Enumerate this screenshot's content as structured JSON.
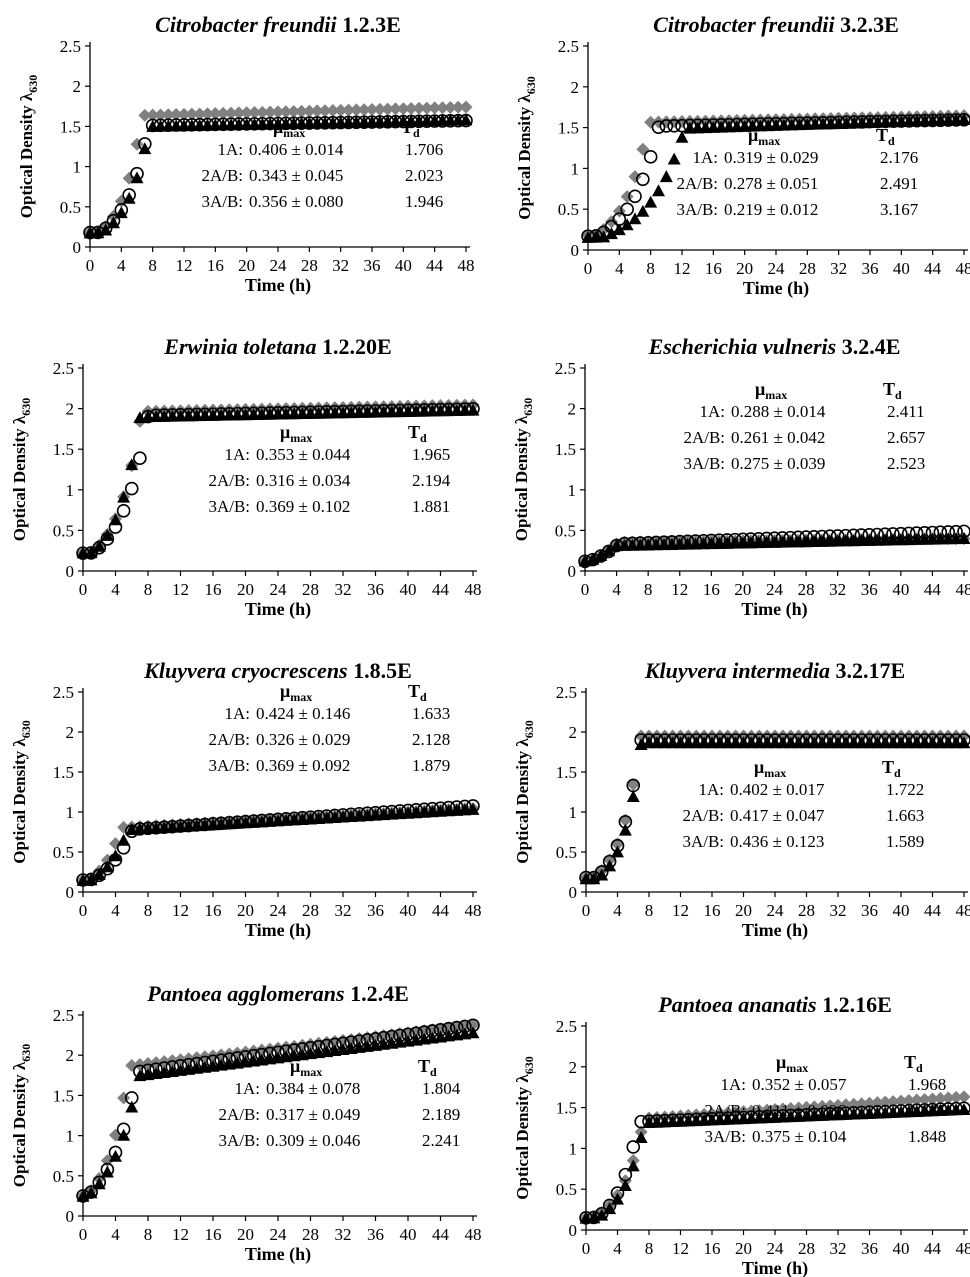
{
  "figure": {
    "xlabel": "Time (h)",
    "ylabel": "Optical Density λ",
    "ylabel_sub": "630",
    "mu_label": "μ",
    "mu_sub": "max",
    "td_label": "T",
    "td_sub": "d",
    "series_style": [
      {
        "key": "1A",
        "marker": "diamond",
        "color": "#808080"
      },
      {
        "key": "2A/B",
        "marker": "circle-open",
        "color": "#000000"
      },
      {
        "key": "3A/B",
        "marker": "triangle",
        "color": "#000000"
      }
    ]
  },
  "chart_data": [
    {
      "type": "scatter",
      "title_italic": "Citrobacter freundii",
      "title_rest": " 1.2.3E",
      "x_ticks": [
        "0",
        "4",
        "8",
        "12",
        "16",
        "20",
        "24",
        "28",
        "32",
        "36",
        "40",
        "44",
        "48"
      ],
      "y_ticks": [
        "0",
        "0.5",
        "1",
        "1.5",
        "2",
        "2.5"
      ],
      "xlim": [
        0,
        48
      ],
      "ylim": [
        0,
        2.5
      ],
      "series": [
        {
          "key": "1A",
          "lag": 1.2,
          "rate": 0.406,
          "y0": 0.18,
          "ymax": 1.62,
          "drift": 0.0025
        },
        {
          "key": "2A/B",
          "lag": 1.3,
          "rate": 0.343,
          "y0": 0.18,
          "ymax": 1.5,
          "drift": 0.0015
        },
        {
          "key": "3A/B",
          "lag": 1.5,
          "rate": 0.356,
          "y0": 0.17,
          "ymax": 1.48,
          "drift": 0.002
        }
      ],
      "stats": [
        {
          "label": "1A:",
          "mu": "0.406 ± 0.014",
          "td": "1.706"
        },
        {
          "label": "2A/B:",
          "mu": "0.343 ± 0.045",
          "td": "2.023"
        },
        {
          "label": "3A/B:",
          "mu": "0.356 ± 0.080",
          "td": "1.946"
        }
      ]
    },
    {
      "type": "scatter",
      "title_italic": "Citrobacter freundii",
      "title_rest": " 3.2.3E",
      "x_ticks": [
        "0",
        "4",
        "8",
        "12",
        "16",
        "20",
        "24",
        "28",
        "32",
        "36",
        "40",
        "44",
        "48"
      ],
      "y_ticks": [
        "0",
        "0.5",
        "1",
        "1.5",
        "2",
        "2.5"
      ],
      "xlim": [
        0,
        48
      ],
      "ylim": [
        0,
        2.5
      ],
      "series": [
        {
          "key": "1A",
          "lag": 1.0,
          "rate": 0.319,
          "y0": 0.18,
          "ymax": 1.55,
          "drift": 0.002
        },
        {
          "key": "2A/B",
          "lag": 1.2,
          "rate": 0.278,
          "y0": 0.17,
          "ymax": 1.5,
          "drift": 0.002
        },
        {
          "key": "3A/B",
          "lag": 2.0,
          "rate": 0.219,
          "y0": 0.15,
          "ymax": 1.45,
          "drift": 0.003
        }
      ],
      "stats": [
        {
          "label": "1A:",
          "mu": "0.319 ± 0.029",
          "td": "2.176"
        },
        {
          "label": "2A/B:",
          "mu": "0.278 ± 0.051",
          "td": "2.491"
        },
        {
          "label": "3A/B:",
          "mu": "0.219 ± 0.012",
          "td": "3.167"
        }
      ]
    },
    {
      "type": "scatter",
      "title_italic": "Erwinia toletana",
      "title_rest": " 1.2.20E",
      "x_ticks": [
        "0",
        "4",
        "8",
        "12",
        "16",
        "20",
        "24",
        "28",
        "32",
        "36",
        "40",
        "44",
        "48"
      ],
      "y_ticks": [
        "0",
        "0.5",
        "1",
        "1.5",
        "2",
        "2.5"
      ],
      "xlim": [
        0,
        48
      ],
      "ylim": [
        0,
        2.5
      ],
      "series": [
        {
          "key": "1A",
          "lag": 1.0,
          "rate": 0.353,
          "y0": 0.22,
          "ymax": 1.95,
          "drift": 0.002
        },
        {
          "key": "2A/B",
          "lag": 1.2,
          "rate": 0.316,
          "y0": 0.22,
          "ymax": 1.9,
          "drift": 0.002
        },
        {
          "key": "3A/B",
          "lag": 1.2,
          "rate": 0.369,
          "y0": 0.22,
          "ymax": 1.88,
          "drift": 0.002
        }
      ],
      "stats": [
        {
          "label": "1A:",
          "mu": "0.353 ± 0.044",
          "td": "1.965"
        },
        {
          "label": "2A/B:",
          "mu": "0.316 ± 0.034",
          "td": "2.194"
        },
        {
          "label": "3A/B:",
          "mu": "0.369 ± 0.102",
          "td": "1.881"
        }
      ]
    },
    {
      "type": "scatter",
      "title_italic": "Escherichia vulneris",
      "title_rest": " 3.2.4E",
      "x_ticks": [
        "0",
        "4",
        "8",
        "12",
        "16",
        "20",
        "24",
        "28",
        "32",
        "36",
        "40",
        "44",
        "48"
      ],
      "y_ticks": [
        "0",
        "0.5",
        "1",
        "1.5",
        "2",
        "2.5"
      ],
      "xlim": [
        0,
        48
      ],
      "ylim": [
        0,
        2.5
      ],
      "series": [
        {
          "key": "1A",
          "lag": 0.5,
          "rate": 0.288,
          "y0": 0.12,
          "ymax": 0.35,
          "drift": 0.001
        },
        {
          "key": "2A/B",
          "lag": 0.5,
          "rate": 0.261,
          "y0": 0.12,
          "ymax": 0.32,
          "drift": 0.0035
        },
        {
          "key": "3A/B",
          "lag": 0.5,
          "rate": 0.275,
          "y0": 0.12,
          "ymax": 0.3,
          "drift": 0.002
        }
      ],
      "stats": [
        {
          "label": "1A:",
          "mu": "0.288 ± 0.014",
          "td": "2.411"
        },
        {
          "label": "2A/B:",
          "mu": "0.261 ± 0.042",
          "td": "2.657"
        },
        {
          "label": "3A/B:",
          "mu": "0.275 ± 0.039",
          "td": "2.523"
        }
      ]
    },
    {
      "type": "scatter",
      "title_italic": "Kluyvera cryocrescens",
      "title_rest": " 1.8.5E",
      "x_ticks": [
        "0",
        "4",
        "8",
        "12",
        "16",
        "20",
        "24",
        "28",
        "32",
        "36",
        "40",
        "44",
        "48"
      ],
      "y_ticks": [
        "0",
        "0.5",
        "1",
        "1.5",
        "2",
        "2.5"
      ],
      "xlim": [
        0,
        48
      ],
      "ylim": [
        0,
        2.5
      ],
      "series": [
        {
          "key": "1A",
          "lag": 0.8,
          "rate": 0.424,
          "y0": 0.15,
          "ymax": 0.78,
          "drift": 0.0055
        },
        {
          "key": "2A/B",
          "lag": 1.2,
          "rate": 0.326,
          "y0": 0.15,
          "ymax": 0.74,
          "drift": 0.007
        },
        {
          "key": "3A/B",
          "lag": 1.0,
          "rate": 0.369,
          "y0": 0.14,
          "ymax": 0.74,
          "drift": 0.006
        }
      ],
      "stats": [
        {
          "label": "1A:",
          "mu": "0.424 ± 0.146",
          "td": "1.633"
        },
        {
          "label": "2A/B:",
          "mu": "0.326 ± 0.029",
          "td": "2.128"
        },
        {
          "label": "3A/B:",
          "mu": "0.369 ± 0.092",
          "td": "1.879"
        }
      ]
    },
    {
      "type": "scatter",
      "title_italic": "Kluyvera intermedia",
      "title_rest": " 3.2.17E",
      "x_ticks": [
        "0",
        "4",
        "8",
        "12",
        "16",
        "20",
        "24",
        "28",
        "32",
        "36",
        "40",
        "44",
        "48"
      ],
      "y_ticks": [
        "0",
        "0.5",
        "1",
        "1.5",
        "2",
        "2.5"
      ],
      "xlim": [
        0,
        48
      ],
      "ylim": [
        0,
        2.5
      ],
      "series": [
        {
          "key": "1A",
          "lag": 1.0,
          "rate": 0.402,
          "y0": 0.18,
          "ymax": 1.95,
          "drift": 0.0
        },
        {
          "key": "2A/B",
          "lag": 1.2,
          "rate": 0.417,
          "y0": 0.18,
          "ymax": 1.9,
          "drift": 0.0
        },
        {
          "key": "3A/B",
          "lag": 1.4,
          "rate": 0.436,
          "y0": 0.16,
          "ymax": 1.86,
          "drift": 0.0
        }
      ],
      "stats": [
        {
          "label": "1A:",
          "mu": "0.402 ± 0.017",
          "td": "1.722"
        },
        {
          "label": "2A/B:",
          "mu": "0.417 ± 0.047",
          "td": "1.663"
        },
        {
          "label": "3A/B:",
          "mu": "0.436 ± 0.123",
          "td": "1.589"
        }
      ]
    },
    {
      "type": "scatter",
      "title_italic": "Pantoea agglomerans",
      "title_rest": " 1.2.4E",
      "x_ticks": [
        "0",
        "4",
        "8",
        "12",
        "16",
        "20",
        "24",
        "28",
        "32",
        "36",
        "40",
        "44",
        "48"
      ],
      "y_ticks": [
        "0",
        "0.5",
        "1",
        "1.5",
        "2",
        "2.5"
      ],
      "xlim": [
        0,
        48
      ],
      "ylim": [
        0,
        2.5
      ],
      "series": [
        {
          "key": "1A",
          "lag": 0.5,
          "rate": 0.384,
          "y0": 0.25,
          "ymax": 1.8,
          "drift": 0.012
        },
        {
          "key": "2A/B",
          "lag": 0.6,
          "rate": 0.317,
          "y0": 0.25,
          "ymax": 1.7,
          "drift": 0.014
        },
        {
          "key": "3A/B",
          "lag": 0.6,
          "rate": 0.309,
          "y0": 0.24,
          "ymax": 1.65,
          "drift": 0.013
        }
      ],
      "stats": [
        {
          "label": "1A:",
          "mu": "0.384 ± 0.078",
          "td": "1.804"
        },
        {
          "label": "2A/B:",
          "mu": "0.317 ± 0.049",
          "td": "2.189"
        },
        {
          "label": "3A/B:",
          "mu": "0.309 ± 0.046",
          "td": "2.241"
        }
      ]
    },
    {
      "type": "scatter",
      "title_italic": "Pantoea ananatis",
      "title_rest": " 1.2.16E",
      "x_ticks": [
        "0",
        "4",
        "8",
        "12",
        "16",
        "20",
        "24",
        "28",
        "32",
        "36",
        "40",
        "44",
        "48"
      ],
      "y_ticks": [
        "0",
        "0.5",
        "1",
        "1.5",
        "2",
        "2.5"
      ],
      "xlim": [
        0,
        48
      ],
      "ylim": [
        0,
        2.5
      ],
      "series": [
        {
          "key": "1A",
          "lag": 1.2,
          "rate": 0.352,
          "y0": 0.15,
          "ymax": 1.32,
          "drift": 0.0065
        },
        {
          "key": "2A/B",
          "lag": 1.4,
          "rate": 0.411,
          "y0": 0.15,
          "ymax": 1.3,
          "drift": 0.004
        },
        {
          "key": "3A/B",
          "lag": 1.5,
          "rate": 0.375,
          "y0": 0.14,
          "ymax": 1.28,
          "drift": 0.004
        }
      ],
      "stats": [
        {
          "label": "1A:",
          "mu": "0.352 ± 0.057",
          "td": "1.968"
        },
        {
          "label": "2A/B:",
          "mu": "0.411 ± 0.096",
          "td": "1.685"
        },
        {
          "label": "3A/B:",
          "mu": "0.375 ± 0.104",
          "td": "1.848"
        }
      ]
    }
  ]
}
